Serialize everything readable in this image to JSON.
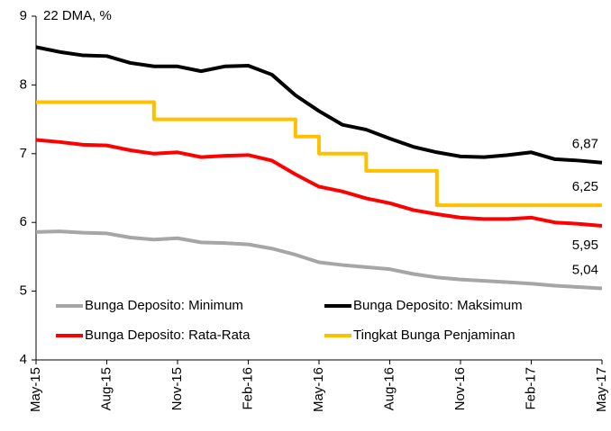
{
  "chart_data": {
    "type": "line",
    "y_label": "22 DMA, %",
    "categories": [
      "May-15",
      null,
      null,
      "Aug-15",
      null,
      null,
      "Nov-15",
      null,
      null,
      "Feb-16",
      null,
      null,
      "May-16",
      null,
      null,
      "Aug-16",
      null,
      null,
      "Nov-16",
      null,
      null,
      "Feb-17",
      null,
      null,
      "May-17"
    ],
    "ylim": [
      4,
      9
    ],
    "yticks": [
      4,
      5,
      6,
      7,
      8,
      9
    ],
    "grid": false,
    "legend": "bottom",
    "series": [
      {
        "name": "Bunga Deposito: Minimum",
        "color": "#a6a6a6",
        "values": [
          5.86,
          5.87,
          5.85,
          5.84,
          5.78,
          5.75,
          5.77,
          5.71,
          5.7,
          5.68,
          5.62,
          5.53,
          5.42,
          5.38,
          5.35,
          5.32,
          5.25,
          5.2,
          5.17,
          5.15,
          5.13,
          5.11,
          5.08,
          5.06,
          5.04
        ],
        "value_labels": [
          null,
          null,
          null,
          null,
          null,
          null,
          null,
          null,
          null,
          null,
          null,
          null,
          null,
          null,
          null,
          null,
          null,
          null,
          null,
          null,
          null,
          null,
          null,
          null,
          "5,04"
        ]
      },
      {
        "name": "Bunga Deposito: Maksimum",
        "color": "#000000",
        "values": [
          8.55,
          8.48,
          8.43,
          8.42,
          8.32,
          8.27,
          8.27,
          8.2,
          8.27,
          8.28,
          8.15,
          7.85,
          7.62,
          7.42,
          7.35,
          7.22,
          7.1,
          7.02,
          6.96,
          6.95,
          6.98,
          7.02,
          6.92,
          6.9,
          6.87
        ],
        "value_labels": [
          null,
          null,
          null,
          null,
          null,
          null,
          null,
          null,
          null,
          null,
          null,
          null,
          null,
          null,
          null,
          null,
          null,
          null,
          null,
          null,
          null,
          null,
          null,
          null,
          "6,87"
        ]
      },
      {
        "name": "Bunga Deposito: Rata-Rata",
        "color": "#ff0000",
        "values": [
          7.2,
          7.17,
          7.13,
          7.12,
          7.05,
          7.0,
          7.02,
          6.95,
          6.97,
          6.98,
          6.9,
          6.7,
          6.52,
          6.45,
          6.35,
          6.28,
          6.18,
          6.12,
          6.07,
          6.05,
          6.05,
          6.07,
          6.0,
          5.98,
          5.95
        ],
        "value_labels": [
          null,
          null,
          null,
          null,
          null,
          null,
          null,
          null,
          null,
          null,
          null,
          null,
          null,
          null,
          null,
          null,
          null,
          null,
          null,
          null,
          null,
          null,
          null,
          null,
          "5,95"
        ]
      },
      {
        "name": "Tingkat Bunga Penjaminan",
        "color": "#ffc000",
        "step": true,
        "values": [
          7.75,
          7.75,
          7.75,
          7.75,
          7.75,
          7.5,
          7.5,
          7.5,
          7.5,
          7.5,
          7.5,
          7.25,
          7.0,
          7.0,
          6.75,
          6.75,
          6.75,
          6.25,
          6.25,
          6.25,
          6.25,
          6.25,
          6.25,
          6.25,
          6.25
        ],
        "value_labels": [
          null,
          null,
          null,
          null,
          null,
          null,
          null,
          null,
          null,
          null,
          null,
          null,
          null,
          null,
          null,
          null,
          null,
          null,
          null,
          null,
          null,
          null,
          null,
          null,
          "6,25"
        ]
      }
    ]
  }
}
